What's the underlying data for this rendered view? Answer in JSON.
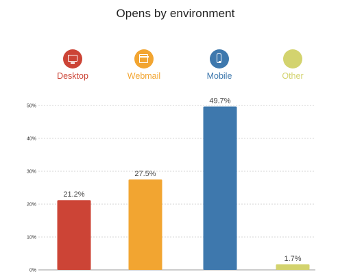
{
  "chart_data": {
    "type": "bar",
    "title": "Opens by environment",
    "categories": [
      "Desktop",
      "Webmail",
      "Mobile",
      "Other"
    ],
    "values": [
      21.2,
      27.5,
      49.7,
      1.7
    ],
    "value_labels": [
      "21.2%",
      "27.5%",
      "49.7%",
      "1.7%"
    ],
    "colors": [
      "#cc4436",
      "#f2a531",
      "#3e78ad",
      "#d3d36e"
    ],
    "icons": [
      "desktop-monitor-icon",
      "browser-window-icon",
      "mobile-phone-icon",
      "blank-circle-icon"
    ],
    "ylim": [
      0,
      50
    ],
    "yticks": [
      0,
      10,
      20,
      30,
      40,
      50
    ],
    "ytick_labels": [
      "0%",
      "10%",
      "20%",
      "30%",
      "40%",
      "50%"
    ],
    "grid": true,
    "legend_position": "top"
  }
}
